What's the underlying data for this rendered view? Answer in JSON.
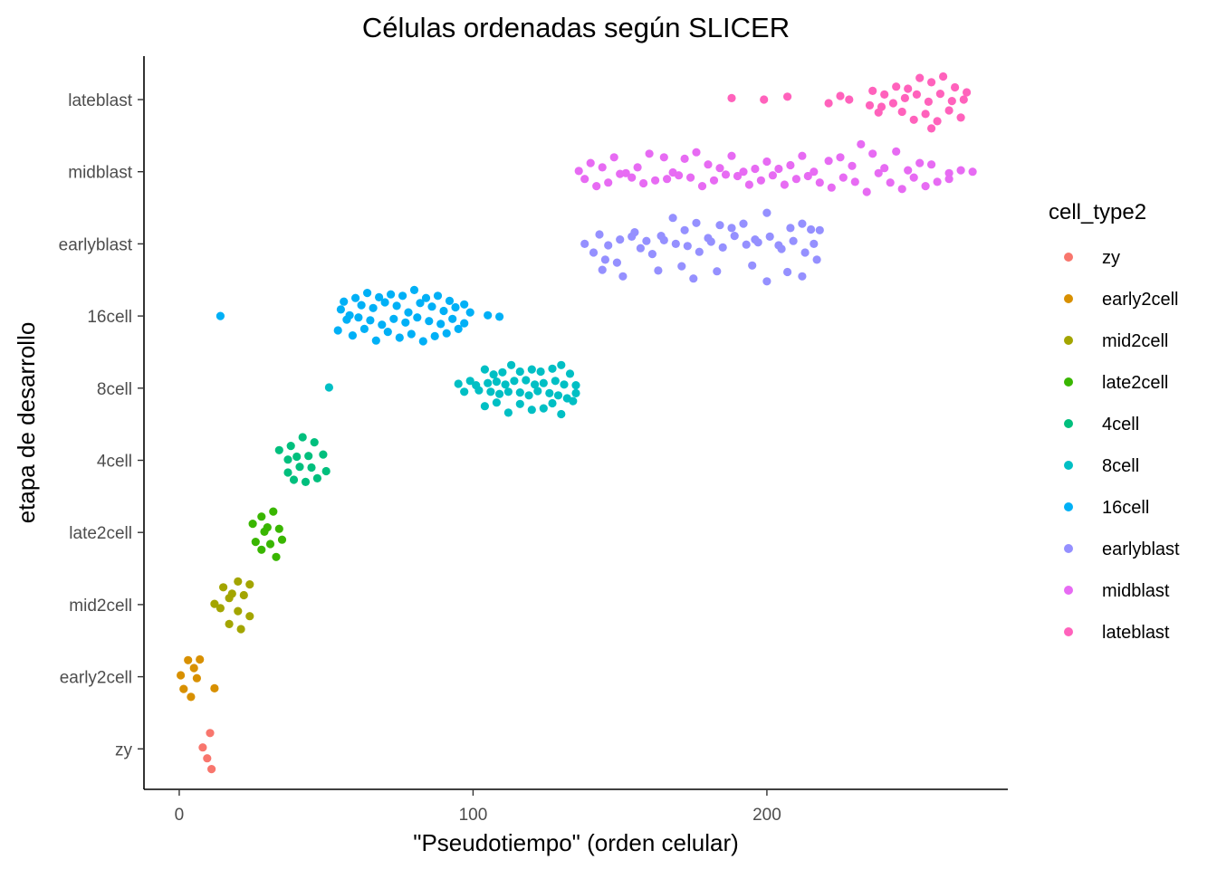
{
  "chart_data": {
    "type": "scatter",
    "title": "Células ordenadas según SLICER",
    "xlabel": "\"Pseudotiempo\" (orden celular)",
    "ylabel": "etapa de desarrollo",
    "xlim": [
      -12,
      282
    ],
    "xticks": [
      "0",
      "100",
      "200"
    ],
    "xtick_values": [
      0,
      100,
      200
    ],
    "categories": [
      "zy",
      "early2cell",
      "mid2cell",
      "late2cell",
      "4cell",
      "8cell",
      "16cell",
      "earlyblast",
      "midblast",
      "lateblast"
    ],
    "grid": false,
    "legend": {
      "title": "cell_type2",
      "position": "right"
    },
    "series": [
      {
        "name": "zy",
        "color": "#F8766D",
        "points": [
          [
            10.5,
            0.22
          ],
          [
            8,
            0.02
          ],
          [
            9.5,
            -0.13
          ],
          [
            11,
            -0.28
          ]
        ]
      },
      {
        "name": "early2cell",
        "color": "#D89000",
        "points": [
          [
            3,
            0.23
          ],
          [
            7,
            0.24
          ],
          [
            5,
            0.12
          ],
          [
            0.5,
            0.02
          ],
          [
            6,
            -0.02
          ],
          [
            1.5,
            -0.17
          ],
          [
            4,
            -0.28
          ],
          [
            12,
            -0.16
          ]
        ]
      },
      {
        "name": "mid2cell",
        "color": "#A3A500",
        "points": [
          [
            20,
            0.32
          ],
          [
            15,
            0.24
          ],
          [
            24,
            0.28
          ],
          [
            18,
            0.15
          ],
          [
            12,
            0.01
          ],
          [
            17,
            0.09
          ],
          [
            22,
            0.13
          ],
          [
            14,
            -0.05
          ],
          [
            20,
            -0.09
          ],
          [
            24,
            -0.16
          ],
          [
            17,
            -0.27
          ],
          [
            21,
            -0.34
          ]
        ]
      },
      {
        "name": "late2cell",
        "color": "#39B600",
        "points": [
          [
            28,
            0.22
          ],
          [
            32,
            0.29
          ],
          [
            25,
            0.12
          ],
          [
            30,
            0.07
          ],
          [
            34,
            0.05
          ],
          [
            26,
            -0.13
          ],
          [
            29,
            0.01
          ],
          [
            35,
            -0.1
          ],
          [
            31,
            -0.16
          ],
          [
            28,
            -0.24
          ],
          [
            33,
            -0.34
          ]
        ]
      },
      {
        "name": "4cell",
        "color": "#00BF7D",
        "points": [
          [
            38,
            0.2
          ],
          [
            42,
            0.32
          ],
          [
            46,
            0.25
          ],
          [
            34,
            0.14
          ],
          [
            44,
            0.06
          ],
          [
            49,
            0.08
          ],
          [
            37,
            0.01
          ],
          [
            40,
            0.05
          ],
          [
            37,
            -0.17
          ],
          [
            41,
            -0.09
          ],
          [
            45,
            -0.1
          ],
          [
            50,
            -0.15
          ],
          [
            39,
            -0.27
          ],
          [
            43,
            -0.3
          ],
          [
            47,
            -0.25
          ]
        ]
      },
      {
        "name": "8cell",
        "color": "#00BFC4",
        "points": [
          [
            51,
            0.01
          ],
          [
            95,
            0.06
          ],
          [
            99,
            0.1
          ],
          [
            104,
            0.26
          ],
          [
            107,
            0.19
          ],
          [
            110,
            0.22
          ],
          [
            113,
            0.32
          ],
          [
            116,
            0.23
          ],
          [
            120,
            0.26
          ],
          [
            123,
            0.23
          ],
          [
            127,
            0.27
          ],
          [
            130,
            0.32
          ],
          [
            133,
            0.2
          ],
          [
            101,
            0.04
          ],
          [
            105,
            0.07
          ],
          [
            108,
            0.09
          ],
          [
            111,
            0.05
          ],
          [
            114,
            0.1
          ],
          [
            118,
            0.11
          ],
          [
            121,
            0.05
          ],
          [
            124,
            0.07
          ],
          [
            128,
            0.1
          ],
          [
            131,
            0.05
          ],
          [
            135,
            0.04
          ],
          [
            97,
            -0.05
          ],
          [
            102,
            -0.03
          ],
          [
            106,
            -0.05
          ],
          [
            109,
            -0.08
          ],
          [
            112,
            -0.05
          ],
          [
            116,
            -0.06
          ],
          [
            119,
            -0.1
          ],
          [
            122,
            -0.04
          ],
          [
            126,
            -0.07
          ],
          [
            129,
            -0.1
          ],
          [
            132,
            -0.14
          ],
          [
            135,
            -0.07
          ],
          [
            104,
            -0.25
          ],
          [
            108,
            -0.2
          ],
          [
            112,
            -0.34
          ],
          [
            116,
            -0.22
          ],
          [
            120,
            -0.3
          ],
          [
            124,
            -0.28
          ],
          [
            127,
            -0.21
          ],
          [
            130,
            -0.36
          ],
          [
            134,
            -0.18
          ]
        ]
      },
      {
        "name": "16cell",
        "color": "#00B0F6",
        "points": [
          [
            14,
            0.0
          ],
          [
            109,
            -0.01
          ],
          [
            105,
            0.01
          ],
          [
            56,
            0.2
          ],
          [
            60,
            0.25
          ],
          [
            64,
            0.32
          ],
          [
            68,
            0.26
          ],
          [
            72,
            0.3
          ],
          [
            76,
            0.28
          ],
          [
            80,
            0.36
          ],
          [
            84,
            0.25
          ],
          [
            88,
            0.28
          ],
          [
            92,
            0.21
          ],
          [
            97,
            0.16
          ],
          [
            55,
            0.09
          ],
          [
            58,
            0.01
          ],
          [
            62,
            0.15
          ],
          [
            66,
            0.11
          ],
          [
            70,
            0.19
          ],
          [
            74,
            0.14
          ],
          [
            78,
            0.05
          ],
          [
            82,
            0.18
          ],
          [
            86,
            0.13
          ],
          [
            90,
            0.07
          ],
          [
            94,
            0.12
          ],
          [
            99,
            0.05
          ],
          [
            57,
            -0.05
          ],
          [
            61,
            -0.02
          ],
          [
            65,
            -0.06
          ],
          [
            69,
            -0.12
          ],
          [
            73,
            -0.04
          ],
          [
            77,
            -0.09
          ],
          [
            81,
            -0.02
          ],
          [
            85,
            -0.07
          ],
          [
            89,
            -0.11
          ],
          [
            93,
            -0.04
          ],
          [
            97,
            -0.1
          ],
          [
            54,
            -0.2
          ],
          [
            59,
            -0.27
          ],
          [
            63,
            -0.18
          ],
          [
            67,
            -0.34
          ],
          [
            71,
            -0.22
          ],
          [
            75,
            -0.3
          ],
          [
            79,
            -0.25
          ],
          [
            83,
            -0.35
          ],
          [
            87,
            -0.28
          ],
          [
            91,
            -0.24
          ],
          [
            95,
            -0.18
          ]
        ]
      },
      {
        "name": "earlyblast",
        "color": "#9590FF",
        "points": [
          [
            138,
            0.0
          ],
          [
            143,
            0.13
          ],
          [
            146,
            -0.02
          ],
          [
            150,
            0.06
          ],
          [
            155,
            0.16
          ],
          [
            159,
            0.04
          ],
          [
            164,
            0.11
          ],
          [
            168,
            0.36
          ],
          [
            172,
            0.19
          ],
          [
            176,
            0.29
          ],
          [
            180,
            0.08
          ],
          [
            184,
            0.26
          ],
          [
            188,
            0.22
          ],
          [
            192,
            0.28
          ],
          [
            196,
            0.06
          ],
          [
            200,
            0.43
          ],
          [
            204,
            -0.02
          ],
          [
            208,
            0.22
          ],
          [
            212,
            0.28
          ],
          [
            215,
            0.2
          ],
          [
            218,
            0.19
          ],
          [
            141,
            -0.12
          ],
          [
            145,
            -0.22
          ],
          [
            149,
            -0.26
          ],
          [
            154,
            0.1
          ],
          [
            157,
            -0.06
          ],
          [
            161,
            -0.14
          ],
          [
            165,
            0.05
          ],
          [
            169,
            0.0
          ],
          [
            173,
            -0.03
          ],
          [
            177,
            -0.11
          ],
          [
            181,
            0.03
          ],
          [
            185,
            -0.05
          ],
          [
            189,
            0.11
          ],
          [
            193,
            -0.01
          ],
          [
            197,
            0.02
          ],
          [
            201,
            0.1
          ],
          [
            205,
            -0.07
          ],
          [
            209,
            0.04
          ],
          [
            213,
            -0.12
          ],
          [
            216,
            0.0
          ],
          [
            144,
            -0.36
          ],
          [
            151,
            -0.45
          ],
          [
            163,
            -0.37
          ],
          [
            171,
            -0.31
          ],
          [
            175,
            -0.48
          ],
          [
            183,
            -0.38
          ],
          [
            195,
            -0.3
          ],
          [
            200,
            -0.52
          ],
          [
            207,
            -0.39
          ],
          [
            212,
            -0.45
          ],
          [
            217,
            -0.22
          ]
        ]
      },
      {
        "name": "midblast",
        "color": "#E76BF3",
        "points": [
          [
            136,
            0.01
          ],
          [
            140,
            0.12
          ],
          [
            144,
            0.06
          ],
          [
            148,
            0.2
          ],
          [
            152,
            -0.02
          ],
          [
            156,
            0.06
          ],
          [
            160,
            0.25
          ],
          [
            165,
            0.2
          ],
          [
            168,
            -0.01
          ],
          [
            172,
            0.18
          ],
          [
            176,
            0.27
          ],
          [
            180,
            0.1
          ],
          [
            184,
            0.05
          ],
          [
            188,
            0.22
          ],
          [
            192,
            0.0
          ],
          [
            196,
            0.04
          ],
          [
            200,
            0.14
          ],
          [
            204,
            0.04
          ],
          [
            208,
            0.09
          ],
          [
            212,
            0.22
          ],
          [
            216,
            0.0
          ],
          [
            221,
            0.15
          ],
          [
            225,
            0.2
          ],
          [
            229,
            0.08
          ],
          [
            232,
            0.38
          ],
          [
            236,
            0.25
          ],
          [
            240,
            0.05
          ],
          [
            244,
            0.28
          ],
          [
            248,
            0.02
          ],
          [
            252,
            0.12
          ],
          [
            256,
            0.1
          ],
          [
            262,
            -0.02
          ],
          [
            266,
            0.02
          ],
          [
            270,
            0.0
          ],
          [
            138,
            -0.1
          ],
          [
            142,
            -0.2
          ],
          [
            146,
            -0.15
          ],
          [
            150,
            -0.03
          ],
          [
            154,
            -0.08
          ],
          [
            158,
            -0.16
          ],
          [
            162,
            -0.12
          ],
          [
            166,
            -0.1
          ],
          [
            170,
            -0.05
          ],
          [
            174,
            -0.08
          ],
          [
            178,
            -0.2
          ],
          [
            182,
            -0.12
          ],
          [
            186,
            -0.04
          ],
          [
            190,
            -0.06
          ],
          [
            194,
            -0.18
          ],
          [
            198,
            -0.12
          ],
          [
            202,
            -0.05
          ],
          [
            206,
            -0.18
          ],
          [
            210,
            -0.1
          ],
          [
            214,
            -0.06
          ],
          [
            218,
            -0.15
          ],
          [
            222,
            -0.22
          ],
          [
            226,
            -0.08
          ],
          [
            230,
            -0.14
          ],
          [
            234,
            -0.28
          ],
          [
            238,
            -0.02
          ],
          [
            242,
            -0.15
          ],
          [
            246,
            -0.24
          ],
          [
            250,
            -0.08
          ],
          [
            254,
            -0.2
          ],
          [
            258,
            -0.14
          ],
          [
            262,
            -0.1
          ]
        ]
      },
      {
        "name": "lateblast",
        "color": "#FF62BC",
        "points": [
          [
            188,
            0.02
          ],
          [
            199,
            0.0
          ],
          [
            207,
            0.04
          ],
          [
            221,
            -0.05
          ],
          [
            225,
            0.05
          ],
          [
            228,
            0.0
          ],
          [
            236,
            0.12
          ],
          [
            240,
            0.07
          ],
          [
            244,
            0.18
          ],
          [
            248,
            0.15
          ],
          [
            252,
            0.3
          ],
          [
            256,
            0.24
          ],
          [
            260,
            0.32
          ],
          [
            264,
            0.17
          ],
          [
            268,
            0.1
          ],
          [
            235,
            -0.08
          ],
          [
            239,
            -0.1
          ],
          [
            243,
            -0.05
          ],
          [
            247,
            0.02
          ],
          [
            251,
            0.07
          ],
          [
            255,
            -0.03
          ],
          [
            259,
            0.08
          ],
          [
            263,
            -0.02
          ],
          [
            267,
            0.0
          ],
          [
            238,
            -0.18
          ],
          [
            246,
            -0.17
          ],
          [
            250,
            -0.28
          ],
          [
            254,
            -0.2
          ],
          [
            258,
            -0.3
          ],
          [
            262,
            -0.15
          ],
          [
            266,
            -0.25
          ],
          [
            256,
            -0.4
          ]
        ]
      }
    ]
  }
}
